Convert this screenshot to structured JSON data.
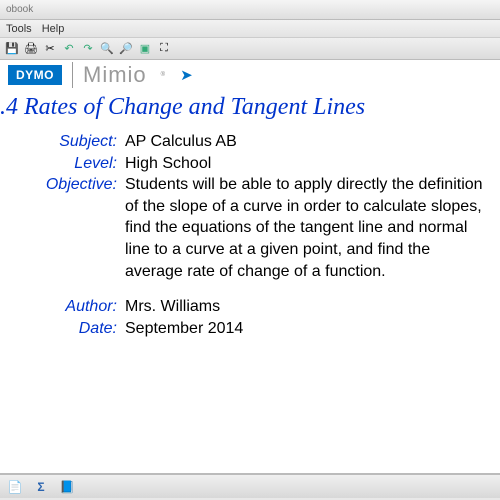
{
  "window": {
    "title_suffix": "obook"
  },
  "menu": {
    "tools": "Tools",
    "help": "Help"
  },
  "brand": {
    "dymo": "DYMO",
    "mimio": "Mimio"
  },
  "lesson": {
    "title": ".4 Rates of Change and Tangent Lines",
    "labels": {
      "subject": "Subject:",
      "level": "Level:",
      "objective": "Objective:",
      "author": "Author:",
      "date": "Date:"
    },
    "subject": "AP Calculus AB",
    "level": "High School",
    "objective": "Students will be able to apply directly the definition of the slope of a curve in order to calculate slopes, find the equations of the tangent line and normal line to a curve at a given point, and find the average rate of change of a function.",
    "author": "Mrs. Williams",
    "date": "September 2014"
  },
  "toolbar_icons": [
    {
      "name": "save-icon",
      "glyph": "💾",
      "color": ""
    },
    {
      "name": "print-icon",
      "glyph": "🖨",
      "color": ""
    },
    {
      "name": "cut-icon",
      "glyph": "✂",
      "color": ""
    },
    {
      "name": "undo-icon",
      "glyph": "↶",
      "color": "#3a7"
    },
    {
      "name": "redo-icon",
      "glyph": "↷",
      "color": "#3a7"
    },
    {
      "name": "zoom-out-icon",
      "glyph": "🔍",
      "color": ""
    },
    {
      "name": "zoom-in-icon",
      "glyph": "🔎",
      "color": ""
    },
    {
      "name": "fit-icon",
      "glyph": "▣",
      "color": "#3a7"
    },
    {
      "name": "fullscreen-icon",
      "glyph": "⛶",
      "color": ""
    }
  ],
  "statusbar_icons": [
    {
      "name": "page-icon",
      "glyph": "📄"
    },
    {
      "name": "sigma-icon",
      "glyph": "Σ"
    },
    {
      "name": "book-icon",
      "glyph": "📘"
    }
  ]
}
